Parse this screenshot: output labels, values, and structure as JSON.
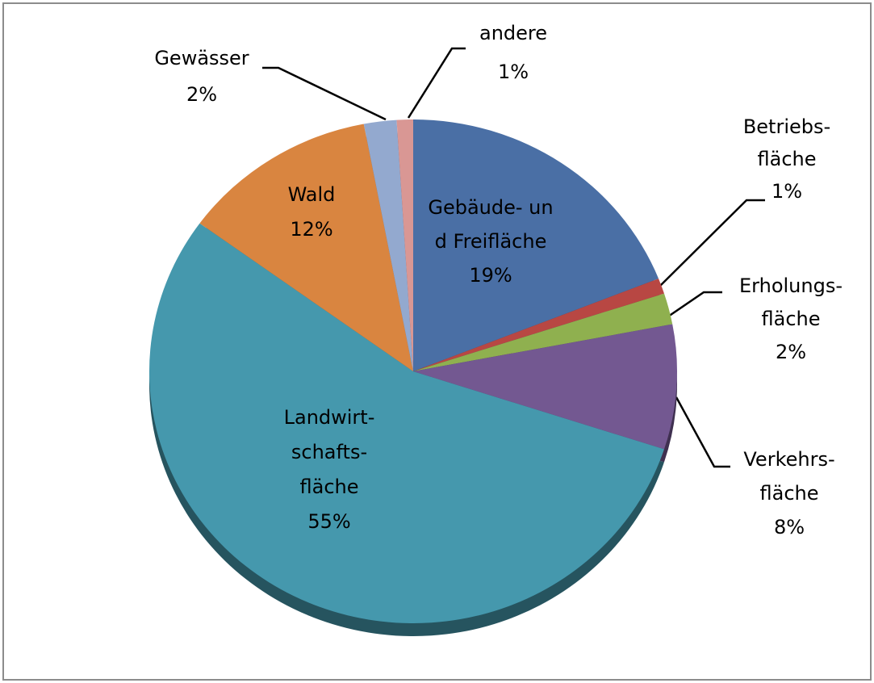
{
  "chart_data": {
    "type": "pie",
    "categories": [
      "Gebäude- un\nd Freifläche",
      "Betriebs-\nfläche",
      "Erholungs-\nfläche",
      "Verkehrs-\nfläche",
      "Landwirt-\nschafts-\nfläche",
      "Wald",
      "Gewässer",
      "andere"
    ],
    "values": [
      19,
      1,
      2,
      8,
      55,
      12,
      2,
      1
    ],
    "value_labels": [
      "19%",
      "1%",
      "2%",
      "8%",
      "55%",
      "12%",
      "2%",
      "1%"
    ],
    "colors": [
      "#4a6fa5",
      "#b84743",
      "#8fb04f",
      "#735891",
      "#4598ad",
      "#d98540",
      "#93a9cf",
      "#d99794"
    ]
  }
}
